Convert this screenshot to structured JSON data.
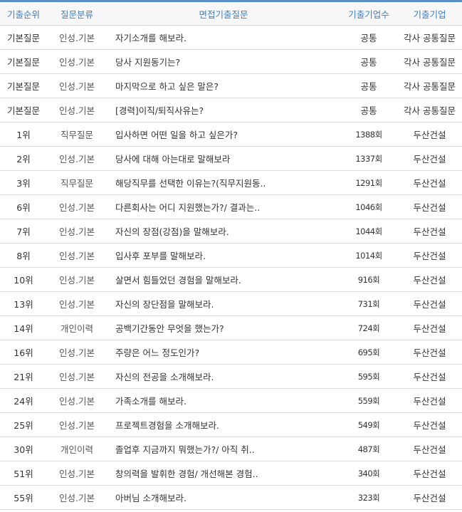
{
  "colors": {
    "accent": "#5a8fc6",
    "header_text": "#3f7dbf",
    "header_bg": "#f7f7f7"
  },
  "headers": {
    "rank": "기출순위",
    "category": "질문분류",
    "question": "면접기출질문",
    "count": "기출기업수",
    "company": "기출기업"
  },
  "rows": [
    {
      "rank": "기본질문",
      "category": "인성.기본",
      "question": "자기소개를 해보라.",
      "count": "공통",
      "company": "각사 공통질문"
    },
    {
      "rank": "기본질문",
      "category": "인성.기본",
      "question": "당사 지원동기는?",
      "count": "공통",
      "company": "각사 공통질문"
    },
    {
      "rank": "기본질문",
      "category": "인성.기본",
      "question": "마지막으로 하고 싶은 말은?",
      "count": "공통",
      "company": "각사 공통질문"
    },
    {
      "rank": "기본질문",
      "category": "인성.기본",
      "question": "[경력]이직/퇴직사유는?",
      "count": "공통",
      "company": "각사 공통질문"
    },
    {
      "rank": "1위",
      "category": "직무질문",
      "question": "입사하면 어떤 일을 하고 싶은가?",
      "count": "1388회",
      "company": "두산건설"
    },
    {
      "rank": "2위",
      "category": "인성.기본",
      "question": "당사에 대해 아는대로 말해보라",
      "count": "1337회",
      "company": "두산건설"
    },
    {
      "rank": "3위",
      "category": "직무질문",
      "question": "해당직무를 선택한 이유는?(직무지원동..",
      "count": "1291회",
      "company": "두산건설"
    },
    {
      "rank": "6위",
      "category": "인성.기본",
      "question": "다른회사는 어디 지원했는가?/ 결과는..",
      "count": "1046회",
      "company": "두산건설"
    },
    {
      "rank": "7위",
      "category": "인성.기본",
      "question": "자신의 장점(강점)을 말해보라.",
      "count": "1044회",
      "company": "두산건설"
    },
    {
      "rank": "8위",
      "category": "인성.기본",
      "question": "입사후 포부를 말해보라.",
      "count": "1014회",
      "company": "두산건설"
    },
    {
      "rank": "10위",
      "category": "인성.기본",
      "question": "살면서 힘들었던 경험을 말해보라.",
      "count": "916회",
      "company": "두산건설"
    },
    {
      "rank": "13위",
      "category": "인성.기본",
      "question": "자신의 장단점을 말해보라.",
      "count": "731회",
      "company": "두산건설"
    },
    {
      "rank": "14위",
      "category": "개인이력",
      "question": "공백기간동안 무엇을 했는가?",
      "count": "724회",
      "company": "두산건설"
    },
    {
      "rank": "16위",
      "category": "인성.기본",
      "question": "주량은 어느 정도인가?",
      "count": "695회",
      "company": "두산건설"
    },
    {
      "rank": "21위",
      "category": "인성.기본",
      "question": "자신의 전공을 소개해보라.",
      "count": "595회",
      "company": "두산건설"
    },
    {
      "rank": "24위",
      "category": "인성.기본",
      "question": "가족소개를 해보라.",
      "count": "559회",
      "company": "두산건설"
    },
    {
      "rank": "25위",
      "category": "인성.기본",
      "question": "프로젝트경험을 소개해보라.",
      "count": "549회",
      "company": "두산건설"
    },
    {
      "rank": "30위",
      "category": "개인이력",
      "question": "졸업후 지금까지 뭐했는가?/ 아직 취..",
      "count": "487회",
      "company": "두산건설"
    },
    {
      "rank": "51위",
      "category": "인성.기본",
      "question": "창의력을 발휘한 경험/ 개선해본 경험..",
      "count": "340회",
      "company": "두산건설"
    },
    {
      "rank": "55위",
      "category": "인성.기본",
      "question": "아버님 소개해보라.",
      "count": "323회",
      "company": "두산건설"
    }
  ]
}
